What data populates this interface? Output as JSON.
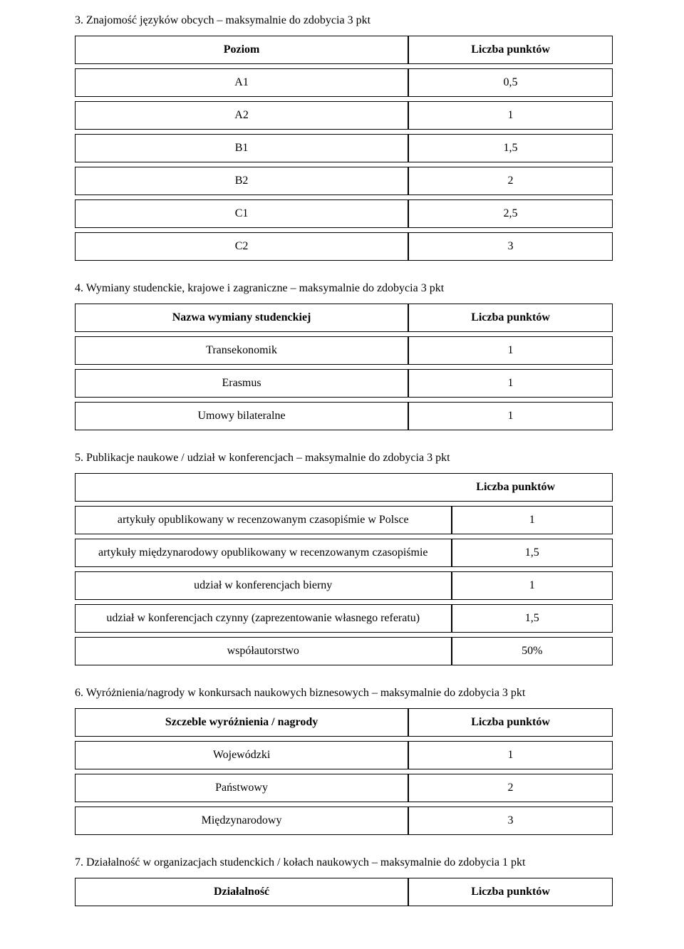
{
  "section3": {
    "num": "3.",
    "title": "Znajomość języków obcych – maksymalnie do zdobycia 3 pkt",
    "header_left": "Poziom",
    "header_right": "Liczba punktów",
    "rows": [
      {
        "level": "A1",
        "points": "0,5"
      },
      {
        "level": "A2",
        "points": "1"
      },
      {
        "level": "B1",
        "points": "1,5"
      },
      {
        "level": "B2",
        "points": "2"
      },
      {
        "level": "C1",
        "points": "2,5"
      },
      {
        "level": "C2",
        "points": "3"
      }
    ]
  },
  "section4": {
    "num": "4.",
    "title": "Wymiany studenckie, krajowe i zagraniczne – maksymalnie do zdobycia 3 pkt",
    "header_left": "Nazwa wymiany studenckiej",
    "header_right": "Liczba punktów",
    "rows": [
      {
        "name": "Transekonomik",
        "points": "1"
      },
      {
        "name": "Erasmus",
        "points": "1"
      },
      {
        "name": "Umowy bilateralne",
        "points": "1"
      }
    ]
  },
  "section5": {
    "num": "5.",
    "title": "Publikacje naukowe / udział w konferencjach – maksymalnie do zdobycia 3 pkt",
    "header_right": "Liczba punktów",
    "rows": [
      {
        "name": "artykuły opublikowany w recenzowanym czasopiśmie w Polsce",
        "points": "1"
      },
      {
        "name": "artykuły międzynarodowy opublikowany w recenzowanym czasopiśmie",
        "points": "1,5"
      },
      {
        "name": "udział w konferencjach bierny",
        "points": "1"
      },
      {
        "name": "udział w konferencjach czynny (zaprezentowanie własnego referatu)",
        "points": "1,5"
      },
      {
        "name": "współautorstwo",
        "points": "50%"
      }
    ]
  },
  "section6": {
    "num": "6.",
    "title": "Wyróżnienia/nagrody w konkursach naukowych biznesowych – maksymalnie do zdobycia 3 pkt",
    "header_left": "Szczeble wyróżnienia / nagrody",
    "header_right": "Liczba punktów",
    "rows": [
      {
        "name": "Wojewódzki",
        "points": "1"
      },
      {
        "name": "Państwowy",
        "points": "2"
      },
      {
        "name": "Międzynarodowy",
        "points": "3"
      }
    ]
  },
  "section7": {
    "num": "7.",
    "title": "Działalność w organizacjach studenckich / kołach naukowych – maksymalnie do zdobycia 1 pkt",
    "header_left": "Działalność",
    "header_right": "Liczba punktów"
  }
}
